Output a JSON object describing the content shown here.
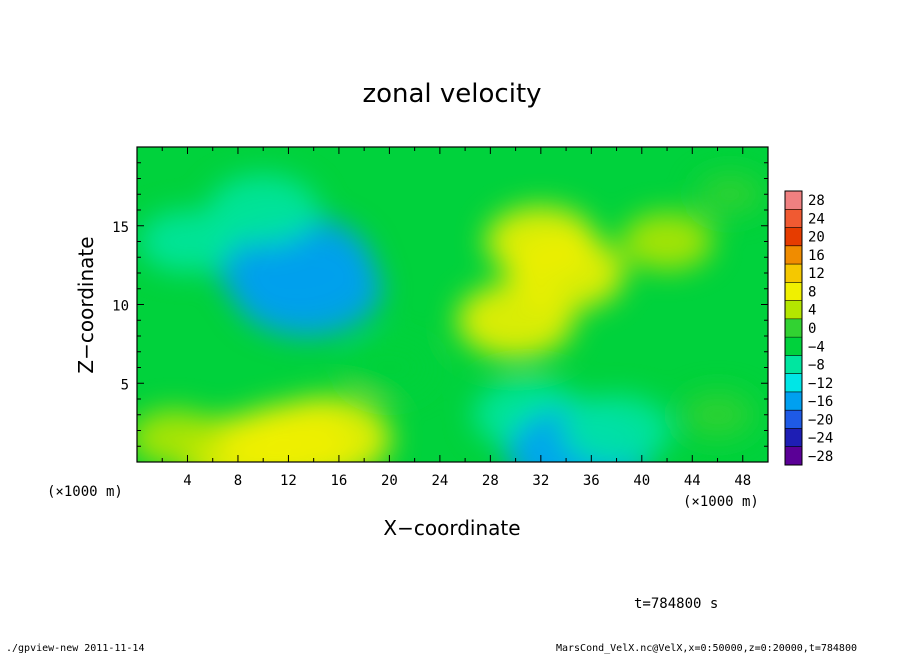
{
  "chart_data": {
    "type": "heatmap",
    "title": "zonal velocity",
    "xlabel": "X−coordinate",
    "ylabel": "Z−coordinate",
    "x_unit_label": "(×1000 m)",
    "y_unit_label": "(×1000 m)",
    "xlim": [
      0,
      50
    ],
    "ylim": [
      0,
      20
    ],
    "x_ticks": [
      4,
      8,
      12,
      16,
      20,
      24,
      28,
      32,
      36,
      40,
      44,
      48
    ],
    "x_tick_labels": [
      "4",
      "8",
      "12",
      "16",
      "20",
      "24",
      "28",
      "32",
      "36",
      "40",
      "44",
      "48"
    ],
    "y_ticks": [
      5,
      10,
      15
    ],
    "y_tick_labels": [
      "5",
      "10",
      "15"
    ],
    "colorbar": {
      "levels": [
        28,
        24,
        20,
        16,
        12,
        8,
        4,
        0,
        -4,
        -8,
        -12,
        -16,
        -20,
        -24,
        -28
      ],
      "labels": [
        "28",
        "24",
        "20",
        "16",
        "12",
        "8",
        "4",
        "0",
        "−4",
        "−8",
        "−12",
        "−16",
        "−20",
        "−24",
        "−28"
      ],
      "colors": [
        "#f08080",
        "#f05a32",
        "#e63c00",
        "#f08c00",
        "#f5c800",
        "#f0f000",
        "#b4e600",
        "#32d232",
        "#00d23c",
        "#00e6a0",
        "#00e6e6",
        "#00a0f0",
        "#1e5ae6",
        "#1e1eb4",
        "#5a0096"
      ]
    },
    "features": [
      {
        "x": 12.5,
        "z": 12.5,
        "value": -15
      },
      {
        "x": 13.5,
        "z": 11.0,
        "value": -14
      },
      {
        "x": 10.0,
        "z": 16.0,
        "value": -8
      },
      {
        "x": 4.0,
        "z": 14.0,
        "value": -6
      },
      {
        "x": 20.0,
        "z": 6.0,
        "value": -4
      },
      {
        "x": 32.0,
        "z": 14.0,
        "value": 8
      },
      {
        "x": 34.0,
        "z": 12.0,
        "value": 9
      },
      {
        "x": 30.0,
        "z": 9.0,
        "value": 9
      },
      {
        "x": 42.0,
        "z": 14.0,
        "value": 5
      },
      {
        "x": 12.0,
        "z": 1.0,
        "value": 11
      },
      {
        "x": 15.0,
        "z": 1.5,
        "value": 11
      },
      {
        "x": 8.0,
        "z": 0.5,
        "value": 9
      },
      {
        "x": 3.0,
        "z": 1.5,
        "value": 5
      },
      {
        "x": 34.0,
        "z": 1.5,
        "value": -10
      },
      {
        "x": 31.0,
        "z": 3.0,
        "value": -8
      },
      {
        "x": 35.0,
        "z": 0.5,
        "value": -13
      },
      {
        "x": 38.0,
        "z": 2.0,
        "value": -8
      },
      {
        "x": 46.0,
        "z": 3.0,
        "value": 2
      },
      {
        "x": 47.0,
        "z": 17.0,
        "value": 1
      }
    ]
  },
  "annotation_time": "t=784800 s",
  "footer_left": "./gpview-new  2011-11-14",
  "footer_right": "MarsCond_VelX.nc@VelX,x=0:50000,z=0:20000,t=784800"
}
